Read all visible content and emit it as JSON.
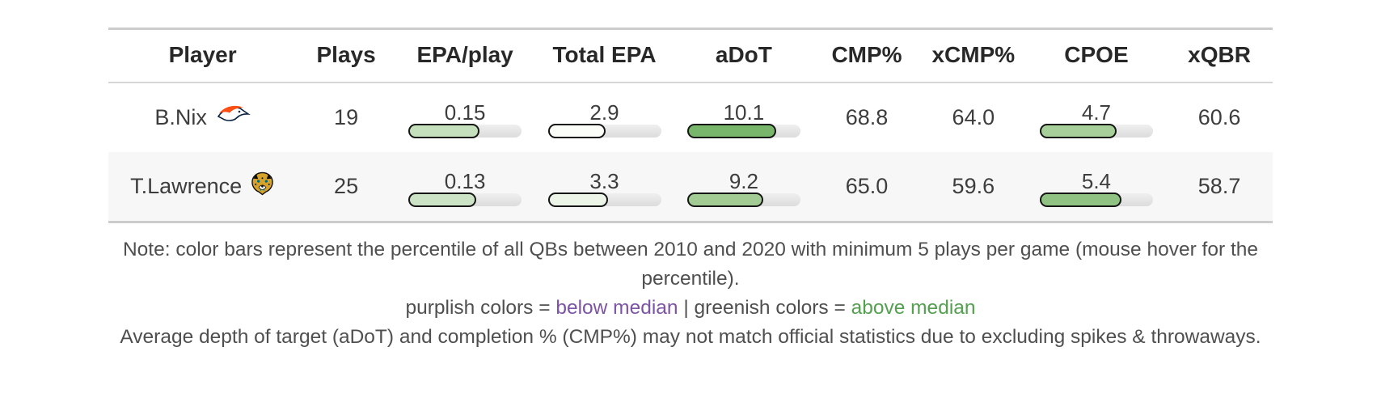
{
  "chart_data": {
    "type": "table",
    "columns": [
      "Player",
      "Plays",
      "EPA/play",
      "Total EPA",
      "aDoT",
      "CMP%",
      "xCMP%",
      "CPOE",
      "xQBR"
    ],
    "rows": [
      {
        "player": "B.Nix",
        "team_icon": "broncos-logo-icon",
        "plays": "19",
        "epa_play": {
          "value": "0.15",
          "bar_pct": 63,
          "bar_color": "#c5e0bc"
        },
        "total_epa": {
          "value": "2.9",
          "bar_pct": 51,
          "bar_color": "#fbfdf9"
        },
        "adot": {
          "value": "10.1",
          "bar_pct": 79,
          "bar_color": "#77b66b"
        },
        "cmp_pct": "68.8",
        "xcmp_pct": "64.0",
        "cpoe": {
          "value": "4.7",
          "bar_pct": 68,
          "bar_color": "#a7cf99"
        },
        "xqbr": "60.6"
      },
      {
        "player": "T.Lawrence",
        "team_icon": "jaguars-logo-icon",
        "plays": "25",
        "epa_play": {
          "value": "0.13",
          "bar_pct": 60,
          "bar_color": "#cde3c5"
        },
        "total_epa": {
          "value": "3.3",
          "bar_pct": 53,
          "bar_color": "#ecf5e7"
        },
        "adot": {
          "value": "9.2",
          "bar_pct": 67,
          "bar_color": "#a3cc95"
        },
        "cmp_pct": "65.0",
        "xcmp_pct": "59.6",
        "cpoe": {
          "value": "5.4",
          "bar_pct": 72,
          "bar_color": "#90c383"
        },
        "xqbr": "58.7"
      }
    ]
  },
  "notes": {
    "line1": "Note: color bars represent the percentile of all QBs between 2010 and 2020 with minimum 5 plays per game (mouse hover for the percentile).",
    "legend_prefix": "purplish colors = ",
    "legend_below": "below median",
    "legend_separator": " | ",
    "legend_mid": "greenish colors = ",
    "legend_above": "above median",
    "line3": "Average depth of target (aDoT) and completion % (CMP%) may not match official statistics due to excluding spikes & throwaways."
  },
  "colors": {
    "below_median_text": "#7d53a6",
    "above_median_text": "#53a04f",
    "bar_outline": "#151515",
    "bar_track": "#e3e3e3",
    "alt_row_bg": "#f7f7f7",
    "table_border": "#cccccc"
  }
}
